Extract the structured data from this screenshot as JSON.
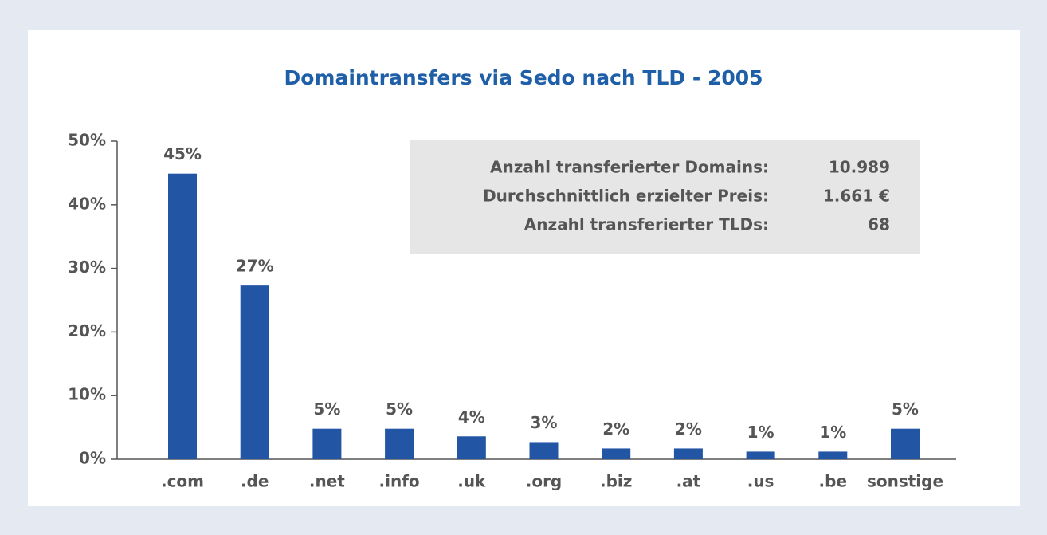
{
  "chart_data": {
    "type": "bar",
    "title": "Domaintransfers via Sedo nach TLD - 2005",
    "categories": [
      ".com",
      ".de",
      ".net",
      ".info",
      ".uk",
      ".org",
      ".biz",
      ".at",
      ".us",
      ".be",
      "sonstige"
    ],
    "values": [
      44.9,
      27.3,
      4.8,
      4.8,
      3.6,
      2.7,
      1.7,
      1.7,
      1.2,
      1.2,
      4.8
    ],
    "value_labels": [
      "45%",
      "27%",
      "5%",
      "5%",
      "4%",
      "3%",
      "2%",
      "2%",
      "1%",
      "1%",
      "5%"
    ],
    "color": "#2255a4",
    "ylim": [
      0,
      50
    ],
    "yticks": [
      {
        "value": 0,
        "label": "0%"
      },
      {
        "value": 10,
        "label": "10%"
      },
      {
        "value": 20,
        "label": "20%"
      },
      {
        "value": 30,
        "label": "30%"
      },
      {
        "value": 40,
        "label": "40%"
      },
      {
        "value": 50,
        "label": "50%"
      }
    ],
    "info_box": [
      {
        "label": "Anzahl transferierter Domains:",
        "value": "10.989"
      },
      {
        "label": "Durchschnittlich erzielter Preis:",
        "value": "1.661 €"
      },
      {
        "label": "Anzahl transferierter TLDs:",
        "value": "68"
      }
    ]
  }
}
